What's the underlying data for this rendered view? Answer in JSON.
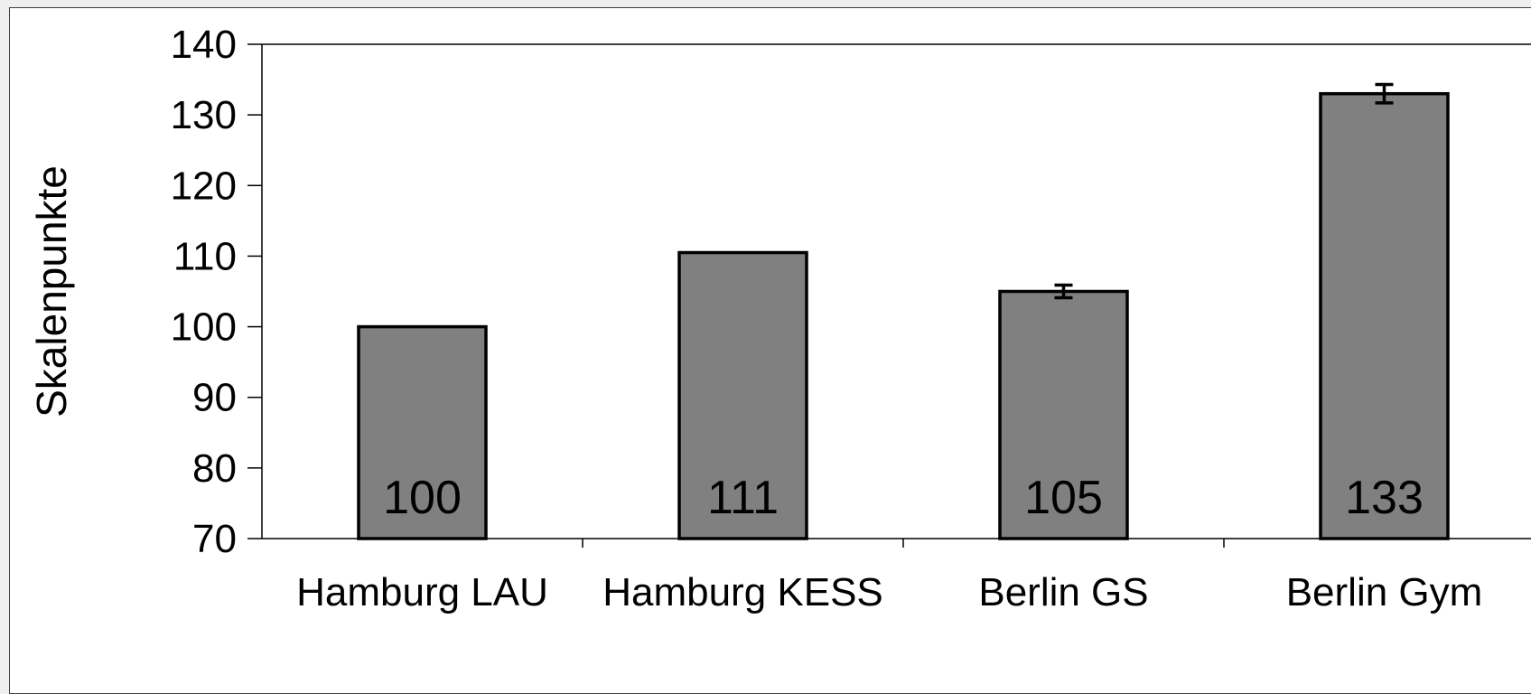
{
  "chart_data": {
    "type": "bar",
    "categories": [
      "Hamburg LAU",
      "Hamburg KESS",
      "Berlin GS",
      "Berlin Gym"
    ],
    "values": [
      100,
      110.5,
      105,
      133
    ],
    "data_labels": [
      "100",
      "111",
      "105",
      "133"
    ],
    "error_bars": [
      null,
      null,
      0.9,
      1.3
    ],
    "ylabel": "Skalenpunkte",
    "xlabel": "",
    "title": "",
    "ylim": [
      70,
      140
    ],
    "yticks": [
      70,
      80,
      90,
      100,
      110,
      120,
      130,
      140
    ],
    "grid": false,
    "legend": "none",
    "colors": {
      "bar_fill": "#808080",
      "bar_stroke": "#000000",
      "axis": "#000000"
    }
  }
}
